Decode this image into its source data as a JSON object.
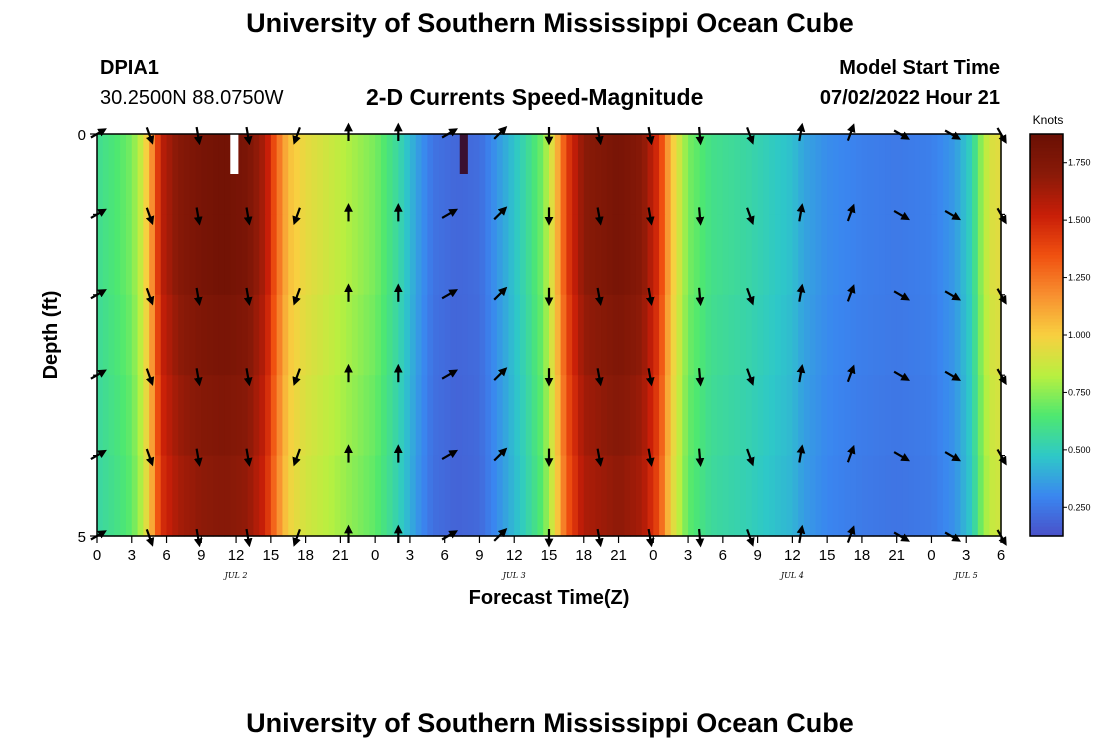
{
  "header": {
    "title": "University of Southern Mississippi Ocean Cube",
    "station": "DPIA1",
    "coordinates": "30.2500N  88.0750W",
    "subtitle": "2-D Currents Speed-Magnitude",
    "model_start_label": "Model Start Time",
    "model_start_value": "07/02/2022 Hour 21"
  },
  "footer": {
    "title": "University of Southern Mississippi Ocean Cube"
  },
  "chart_data": {
    "type": "heatmap",
    "xlabel": "Forecast Time(Z)",
    "ylabel": "Depth (ft)",
    "colorbar_label": "Knots",
    "x_range_hours": [
      0,
      78
    ],
    "x_ticks": [
      {
        "h": 0,
        "label": "0"
      },
      {
        "h": 3,
        "label": "3"
      },
      {
        "h": 6,
        "label": "6"
      },
      {
        "h": 9,
        "label": "9"
      },
      {
        "h": 12,
        "label": "12"
      },
      {
        "h": 15,
        "label": "15"
      },
      {
        "h": 18,
        "label": "18"
      },
      {
        "h": 21,
        "label": "21"
      },
      {
        "h": 24,
        "label": "0"
      },
      {
        "h": 27,
        "label": "3"
      },
      {
        "h": 30,
        "label": "6"
      },
      {
        "h": 33,
        "label": "9"
      },
      {
        "h": 36,
        "label": "12"
      },
      {
        "h": 39,
        "label": "15"
      },
      {
        "h": 42,
        "label": "18"
      },
      {
        "h": 45,
        "label": "21"
      },
      {
        "h": 48,
        "label": "0"
      },
      {
        "h": 51,
        "label": "3"
      },
      {
        "h": 54,
        "label": "6"
      },
      {
        "h": 57,
        "label": "9"
      },
      {
        "h": 60,
        "label": "12"
      },
      {
        "h": 63,
        "label": "15"
      },
      {
        "h": 66,
        "label": "18"
      },
      {
        "h": 69,
        "label": "21"
      },
      {
        "h": 72,
        "label": "0"
      },
      {
        "h": 75,
        "label": "3"
      },
      {
        "h": 78,
        "label": "6"
      }
    ],
    "date_labels": [
      {
        "h": 12,
        "label": "JUL 2"
      },
      {
        "h": 36,
        "label": "JUL 3"
      },
      {
        "h": 60,
        "label": "JUL 4"
      },
      {
        "h": 75,
        "label": "JUL 5"
      }
    ],
    "y_ticks": [
      {
        "depth": 0,
        "label": "0"
      },
      {
        "depth": 5,
        "label": "5"
      }
    ],
    "depth_range_ft": [
      0,
      5
    ],
    "depth_levels": 5,
    "colorbar": {
      "range": [
        0.125,
        1.875
      ],
      "ticks": [
        {
          "v": 0.25,
          "label": "0.250"
        },
        {
          "v": 0.5,
          "label": "0.500"
        },
        {
          "v": 0.75,
          "label": "0.750"
        },
        {
          "v": 1.0,
          "label": "1.000"
        },
        {
          "v": 1.25,
          "label": "1.250"
        },
        {
          "v": 1.5,
          "label": "1.500"
        },
        {
          "v": 1.75,
          "label": "1.750"
        }
      ],
      "stops": [
        "#4a50c8",
        "#3a86f0",
        "#2ec8c8",
        "#4ee870",
        "#b8f040",
        "#f8d040",
        "#f89030",
        "#f05010",
        "#c81e08",
        "#8a1a08",
        "#6a1004"
      ]
    },
    "speed_knots_by_hour": [
      [
        0,
        0.58
      ],
      [
        1,
        0.62
      ],
      [
        2,
        0.66
      ],
      [
        3,
        0.72
      ],
      [
        4,
        0.9
      ],
      [
        4.8,
        1.2
      ],
      [
        5.5,
        1.55
      ],
      [
        7,
        1.72
      ],
      [
        9,
        1.8
      ],
      [
        11,
        1.83
      ],
      [
        13,
        1.78
      ],
      [
        14.5,
        1.6
      ],
      [
        15.5,
        1.3
      ],
      [
        16.5,
        1.05
      ],
      [
        18,
        0.95
      ],
      [
        20,
        0.88
      ],
      [
        22,
        0.8
      ],
      [
        24,
        0.72
      ],
      [
        26,
        0.55
      ],
      [
        27.5,
        0.38
      ],
      [
        29,
        0.24
      ],
      [
        31,
        0.2
      ],
      [
        33,
        0.22
      ],
      [
        35,
        0.38
      ],
      [
        37,
        0.55
      ],
      [
        38.5,
        0.72
      ],
      [
        39.5,
        1.0
      ],
      [
        40.5,
        1.4
      ],
      [
        42,
        1.7
      ],
      [
        45,
        1.8
      ],
      [
        47,
        1.72
      ],
      [
        48.5,
        1.45
      ],
      [
        49.5,
        1.05
      ],
      [
        51,
        0.72
      ],
      [
        53,
        0.6
      ],
      [
        56,
        0.55
      ],
      [
        58,
        0.5
      ],
      [
        60,
        0.45
      ],
      [
        61,
        0.38
      ],
      [
        63,
        0.32
      ],
      [
        66,
        0.28
      ],
      [
        69,
        0.26
      ],
      [
        72,
        0.28
      ],
      [
        74,
        0.35
      ],
      [
        75.5,
        0.52
      ],
      [
        76.5,
        0.82
      ],
      [
        77.5,
        0.95
      ],
      [
        78,
        0.92
      ]
    ],
    "depth_factor": [
      1.0,
      1.0,
      0.98,
      0.96,
      0.94,
      0.92
    ],
    "missing_segments_top_row": [
      {
        "h0": 11.5,
        "h1": 12.2,
        "type": "white"
      },
      {
        "h0": 31.3,
        "h1": 32.0,
        "type": "dark"
      }
    ],
    "vector_direction_deg_by_time": [
      {
        "h": 0.0,
        "dir": 60
      },
      {
        "h": 4.5,
        "dir": 160
      },
      {
        "h": 8.7,
        "dir": 170
      },
      {
        "h": 13.0,
        "dir": 170
      },
      {
        "h": 17.3,
        "dir": 200
      },
      {
        "h": 21.7,
        "dir": 0
      },
      {
        "h": 26.0,
        "dir": 0
      },
      {
        "h": 30.3,
        "dir": 60
      },
      {
        "h": 34.7,
        "dir": 45
      },
      {
        "h": 39.0,
        "dir": 180
      },
      {
        "h": 43.3,
        "dir": 170
      },
      {
        "h": 47.7,
        "dir": 170
      },
      {
        "h": 52.0,
        "dir": 175
      },
      {
        "h": 56.3,
        "dir": 160
      },
      {
        "h": 60.7,
        "dir": 10
      },
      {
        "h": 65.0,
        "dir": 20
      },
      {
        "h": 69.3,
        "dir": 120
      },
      {
        "h": 73.7,
        "dir": 120
      },
      {
        "h": 78.0,
        "dir": 150
      }
    ],
    "vector_depth_rows": [
      0,
      1,
      2,
      3,
      4,
      5
    ]
  }
}
